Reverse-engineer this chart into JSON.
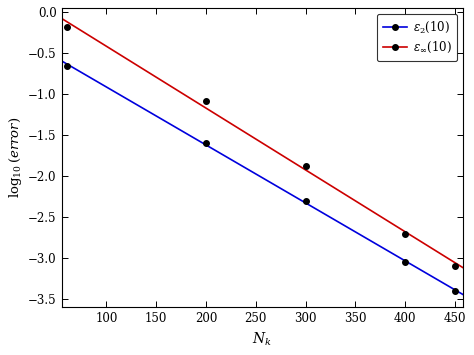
{
  "x_points": [
    60,
    200,
    300,
    400,
    450
  ],
  "blue_y": [
    -0.65,
    -1.6,
    -2.3,
    -3.05,
    -3.4
  ],
  "red_y": [
    -0.185,
    -1.08,
    -1.88,
    -2.7,
    -3.1
  ],
  "blue_color": "#0000dd",
  "red_color": "#cc0000",
  "marker_color": "black",
  "marker_style": "o",
  "marker_size": 4,
  "xlabel": "$N_k$",
  "ylabel": "$\\log_{10}(error)$",
  "xlim": [
    55,
    458
  ],
  "ylim": [
    -3.6,
    0.05
  ],
  "xticks": [
    100,
    150,
    200,
    250,
    300,
    350,
    400,
    450
  ],
  "yticks": [
    0,
    -0.5,
    -1.0,
    -1.5,
    -2.0,
    -2.5,
    -3.0,
    -3.5
  ],
  "legend_blue": "$\\epsilon_2(10)$",
  "legend_red": "$\\epsilon_\\infty(10)$",
  "legend_loc": "upper right",
  "linewidth": 1.2,
  "bg_color": "#ffffff",
  "font_family": "DejaVu Serif"
}
